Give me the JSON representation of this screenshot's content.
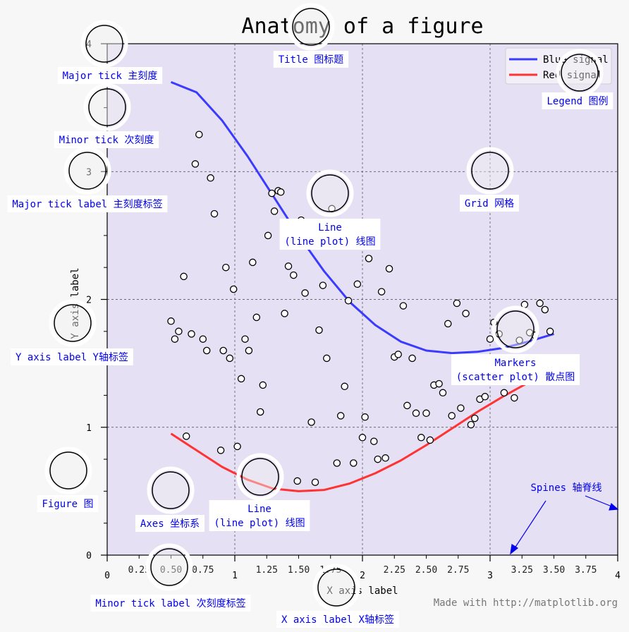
{
  "chart_data": {
    "type": "line+scatter",
    "title": "Anatomy of a figure",
    "xlabel": "X axis label",
    "ylabel": "Y axis label",
    "xlim": [
      0,
      4
    ],
    "ylim": [
      0,
      4
    ],
    "grid": true,
    "legend_position": "top-right",
    "x_major_ticks": [
      "0",
      "1",
      "2",
      "3",
      "4"
    ],
    "x_minor_ticks": [
      "0.25",
      "0.50",
      "0.75",
      "1.25",
      "1.50",
      "1.75",
      "2.25",
      "2.50",
      "2.75",
      "3.25",
      "3.50",
      "3.75"
    ],
    "y_major_ticks": [
      "0",
      "1",
      "2",
      "3",
      "4"
    ],
    "series": [
      {
        "name": "Blue signal",
        "kind": "line",
        "color": "#3b3bff",
        "x": [
          0.5,
          0.7,
          0.9,
          1.1,
          1.3,
          1.5,
          1.7,
          1.9,
          2.1,
          2.3,
          2.5,
          2.7,
          2.9,
          3.1,
          3.3,
          3.5
        ],
        "y": [
          3.7,
          3.62,
          3.4,
          3.12,
          2.81,
          2.5,
          2.22,
          1.98,
          1.8,
          1.67,
          1.6,
          1.58,
          1.59,
          1.62,
          1.67,
          1.73
        ]
      },
      {
        "name": "Red signal",
        "kind": "line",
        "color": "#ff3333",
        "x": [
          0.5,
          0.7,
          0.9,
          1.1,
          1.3,
          1.5,
          1.7,
          1.9,
          2.1,
          2.3,
          2.5,
          2.7,
          2.9,
          3.1,
          3.3,
          3.5
        ],
        "y": [
          0.95,
          0.82,
          0.69,
          0.59,
          0.52,
          0.5,
          0.51,
          0.56,
          0.64,
          0.74,
          0.86,
          0.99,
          1.12,
          1.24,
          1.35,
          1.44
        ]
      },
      {
        "name": "Markers",
        "kind": "scatter",
        "color": "#ffffff",
        "edge_color": "#000000",
        "x": [
          0.5,
          0.53,
          0.56,
          0.6,
          0.62,
          0.66,
          0.69,
          0.72,
          0.75,
          0.78,
          0.81,
          0.84,
          0.89,
          0.91,
          0.93,
          0.96,
          0.99,
          1.02,
          1.05,
          1.08,
          1.11,
          1.14,
          1.17,
          1.2,
          1.22,
          1.26,
          1.29,
          1.31,
          1.34,
          1.36,
          1.39,
          1.42,
          1.46,
          1.49,
          1.52,
          1.55,
          1.6,
          1.63,
          1.66,
          1.69,
          1.72,
          1.76,
          1.8,
          1.83,
          1.86,
          1.89,
          1.93,
          1.96,
          2,
          2.02,
          2.05,
          2.09,
          2.12,
          2.15,
          2.18,
          2.21,
          2.25,
          2.28,
          2.32,
          2.35,
          2.39,
          2.42,
          2.46,
          2.5,
          2.53,
          2.56,
          2.6,
          2.63,
          2.67,
          2.7,
          2.74,
          2.77,
          2.81,
          2.85,
          2.88,
          2.92,
          2.96,
          3,
          3.03,
          3.07,
          3.11,
          3.15,
          3.19,
          3.23,
          3.27,
          3.31,
          3.35,
          3.39,
          3.43,
          3.47
        ],
        "y": [
          1.83,
          1.69,
          1.75,
          2.18,
          0.93,
          1.73,
          3.06,
          3.29,
          1.69,
          1.6,
          2.95,
          2.67,
          0.82,
          1.6,
          2.25,
          1.54,
          2.08,
          0.85,
          1.38,
          1.69,
          1.6,
          2.29,
          1.86,
          1.12,
          1.33,
          2.5,
          2.83,
          2.69,
          2.85,
          2.84,
          1.89,
          2.26,
          2.19,
          0.58,
          2.62,
          2.05,
          1.04,
          0.57,
          1.76,
          2.11,
          1.54,
          2.71,
          0.72,
          1.09,
          1.32,
          1.99,
          0.72,
          2.12,
          0.92,
          1.08,
          2.32,
          0.89,
          0.75,
          2.06,
          0.76,
          2.24,
          1.55,
          1.57,
          1.95,
          1.17,
          1.54,
          1.11,
          0.92,
          1.11,
          0.9,
          1.33,
          1.34,
          1.27,
          1.81,
          1.09,
          1.97,
          1.15,
          1.89,
          1.02,
          1.07,
          1.22,
          1.24,
          1.69,
          1.82,
          1.73,
          1.27,
          1.39,
          1.23,
          1.68,
          1.96,
          1.74,
          1.72,
          1.97,
          1.92,
          1.75
        ]
      }
    ],
    "annotations": [
      {
        "text": "Title 图标题"
      },
      {
        "text": "Major tick 主刻度"
      },
      {
        "text": "Minor tick 次刻度"
      },
      {
        "text": "Major tick label 主刻度标签"
      },
      {
        "text": "Y axis label Y轴标签"
      },
      {
        "text": "Figure 图"
      },
      {
        "text": "Axes 坐标系"
      },
      {
        "text": "Minor tick label 次刻度标签"
      },
      {
        "text": "X axis label X轴标签"
      },
      {
        "text": "Legend 图例"
      },
      {
        "text": "Grid 网格"
      },
      {
        "text": "Line\n(line plot) 线图"
      },
      {
        "text": "Markers\n(scatter plot) 散点图"
      },
      {
        "text": "Line\n(line plot) 线图"
      },
      {
        "text": "Spines 轴脊线"
      }
    ],
    "credit": "Made with http://matplotlib.org"
  },
  "colors": {
    "page_background": "#f7f7f7",
    "axes_background": "#e6e0f4",
    "annotation_text": "#0000ee",
    "circle_fill": "#efefef"
  }
}
